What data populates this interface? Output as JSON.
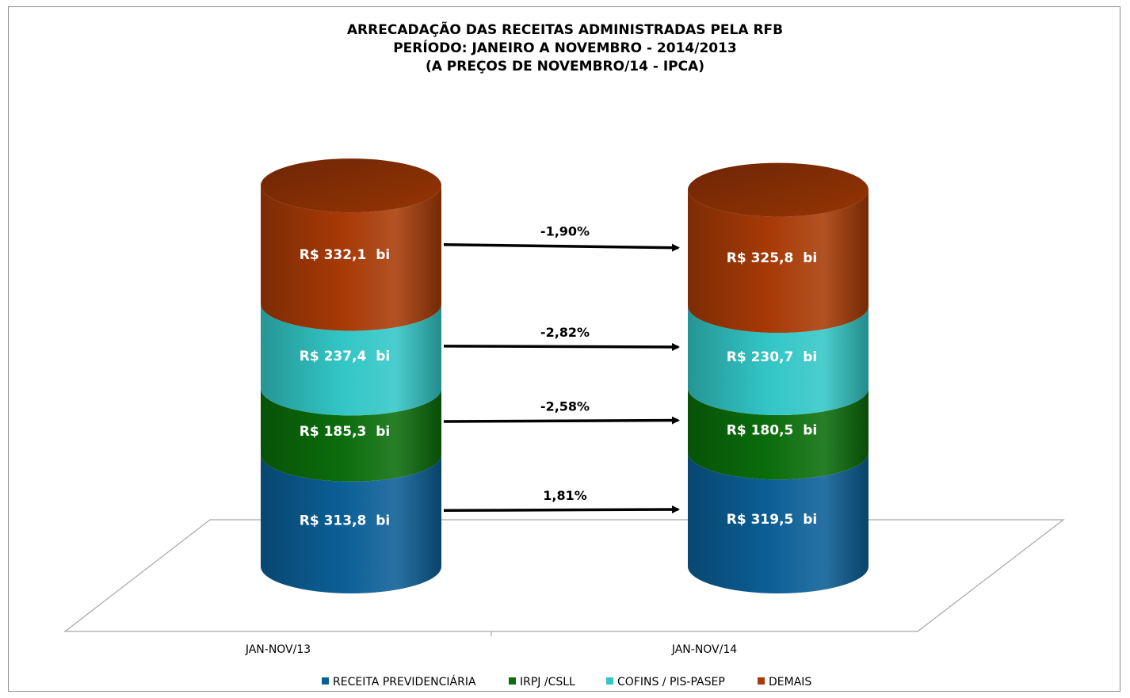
{
  "chart_data": {
    "type": "bar",
    "stacked": true,
    "style": "3d-cylinder",
    "title": [
      "ARRECADAÇÃO DAS RECEITAS ADMINISTRADAS PELA RFB",
      "PERÍODO: JANEIRO A NOVEMBRO - 2014/2013",
      "(A PREÇOS DE NOVEMBRO/14 - IPCA)"
    ],
    "categories": [
      "JAN-NOV/13",
      "JAN-NOV/14"
    ],
    "series": [
      {
        "name": "RECEITA PREVIDENCIÁRIA",
        "color": "#0b5f96",
        "values": [
          313.8,
          319.5
        ],
        "labels": [
          "R$ 313,8  bi",
          "R$ 319,5  bi"
        ]
      },
      {
        "name": "IRPJ /CSLL",
        "color": "#0b6d0b",
        "values": [
          185.3,
          180.5
        ],
        "labels": [
          "R$ 185,3  bi",
          "R$ 180,5  bi"
        ]
      },
      {
        "name": "COFINS / PIS-PASEP",
        "color": "#33c6c6",
        "values": [
          237.4,
          230.7
        ],
        "labels": [
          "R$ 237,4  bi",
          "R$ 230,7  bi"
        ]
      },
      {
        "name": "DEMAIS",
        "color": "#a73a06",
        "values": [
          332.1,
          325.8
        ],
        "labels": [
          "R$ 332,1  bi",
          "R$ 325,8  bi"
        ]
      }
    ],
    "changes": [
      "1,81%",
      "-2,58%",
      "-2,82%",
      "-1,90%"
    ],
    "legend": "bottom",
    "grid": false
  }
}
